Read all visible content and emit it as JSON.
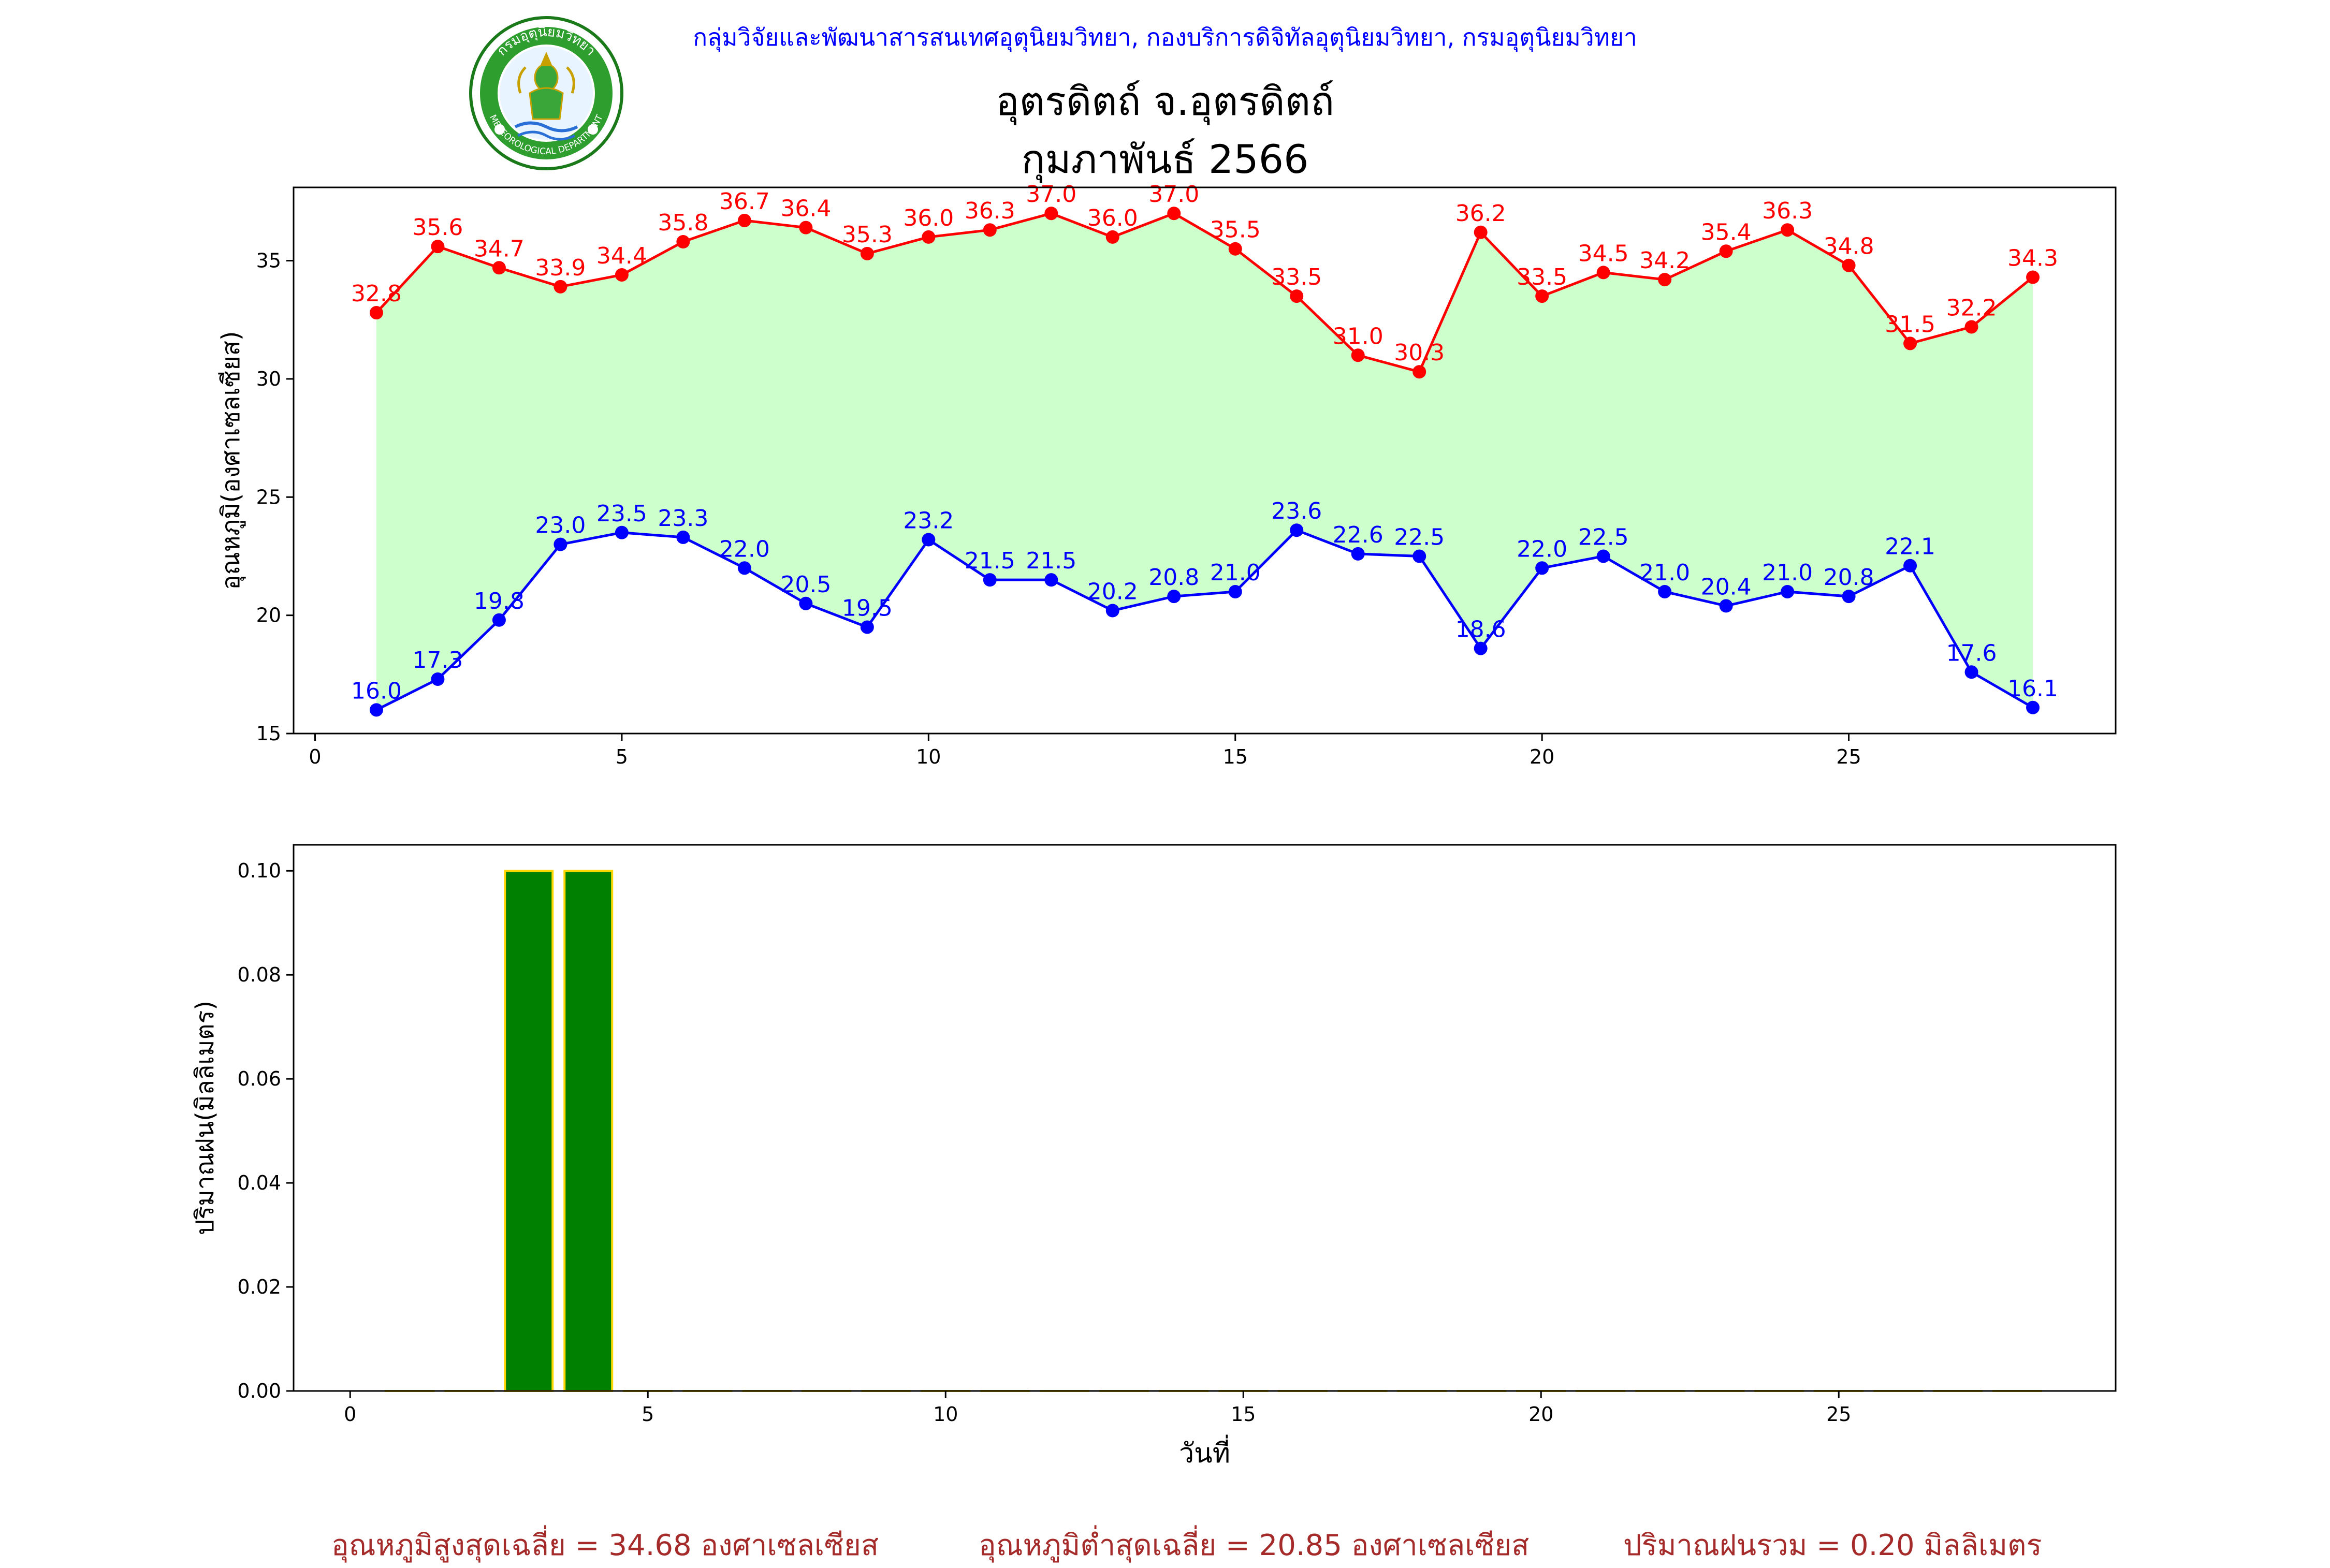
{
  "header": {
    "org_line": "กลุ่มวิจัยและพัฒนาสารสนเทศอุตุนิยมวิทยา, กองบริการดิจิทัลอุตุนิยมวิทยา, กรมอุตุนิยมวิทยา",
    "title_line1": "อุตรดิตถ์ จ.อุตรดิตถ์",
    "title_line2": "กุมภาพันธ์ 2566",
    "logo": {
      "icon": "meteorological-department-seal",
      "text_top": "กรมอุตุนิยมวิทยา",
      "text_bottom": "METEOROLOGICAL DEPARTMENT"
    }
  },
  "chart_data": [
    {
      "type": "line",
      "ylabel": "อุณหภูมิ(องศาเซลเซียส)",
      "xlabel": "",
      "xlim": [
        -0.35,
        29.35
      ],
      "ylim": [
        15,
        38.1
      ],
      "xticks": [
        0,
        5,
        10,
        15,
        20,
        25
      ],
      "yticks": [
        15,
        20,
        25,
        30,
        35
      ],
      "fill_between": "#ccffcc",
      "x": [
        1,
        2,
        3,
        4,
        5,
        6,
        7,
        8,
        9,
        10,
        11,
        12,
        13,
        14,
        15,
        16,
        17,
        18,
        19,
        20,
        21,
        22,
        23,
        24,
        25,
        26,
        27,
        28
      ],
      "series": [
        {
          "color": "#ff0000",
          "values": [
            32.8,
            35.6,
            34.7,
            33.9,
            34.4,
            35.8,
            36.7,
            36.4,
            35.3,
            36.0,
            36.3,
            37.0,
            36.0,
            37.0,
            35.5,
            33.5,
            31.0,
            30.3,
            36.2,
            33.5,
            34.5,
            34.2,
            35.4,
            36.3,
            34.8,
            31.5,
            32.2,
            34.3
          ]
        },
        {
          "color": "#0000ff",
          "values": [
            16.0,
            17.3,
            19.8,
            23.0,
            23.5,
            23.3,
            22.0,
            20.5,
            19.5,
            23.2,
            21.5,
            21.5,
            20.2,
            20.8,
            21.0,
            23.6,
            22.6,
            22.5,
            18.6,
            22.0,
            22.5,
            21.0,
            20.4,
            21.0,
            20.8,
            22.1,
            17.6,
            16.1
          ]
        }
      ]
    },
    {
      "type": "bar",
      "ylabel": "ปริมาณฝน(มิลลิเมตร)",
      "xlabel": "วันที่",
      "xlim": [
        -0.95,
        29.65
      ],
      "ylim": [
        0,
        0.105
      ],
      "xticks": [
        0,
        5,
        10,
        15,
        20,
        25
      ],
      "yticks": [
        0.0,
        0.02,
        0.04,
        0.06,
        0.08,
        0.1
      ],
      "bar_color": "#008000",
      "edge_color": "#ffd700",
      "x": [
        1,
        2,
        3,
        4,
        5,
        6,
        7,
        8,
        9,
        10,
        11,
        12,
        13,
        14,
        15,
        16,
        17,
        18,
        19,
        20,
        21,
        22,
        23,
        24,
        25,
        26,
        27,
        28
      ],
      "values": [
        0,
        0,
        0.1,
        0.1,
        0,
        0,
        0,
        0,
        0,
        0,
        0,
        0,
        0,
        0,
        0,
        0,
        0,
        0,
        0,
        0,
        0,
        0,
        0,
        0,
        0,
        0,
        0,
        0
      ]
    }
  ],
  "summary": {
    "max_avg": "อุณหภูมิสูงสุดเฉลี่ย = 34.68 องศาเซลเซียส",
    "min_avg": "อุณหภูมิต่ำสุดเฉลี่ย = 20.85 องศาเซลเซียส",
    "rain_total": "ปริมาณฝนรวม = 0.20 มิลลิเมตร"
  }
}
